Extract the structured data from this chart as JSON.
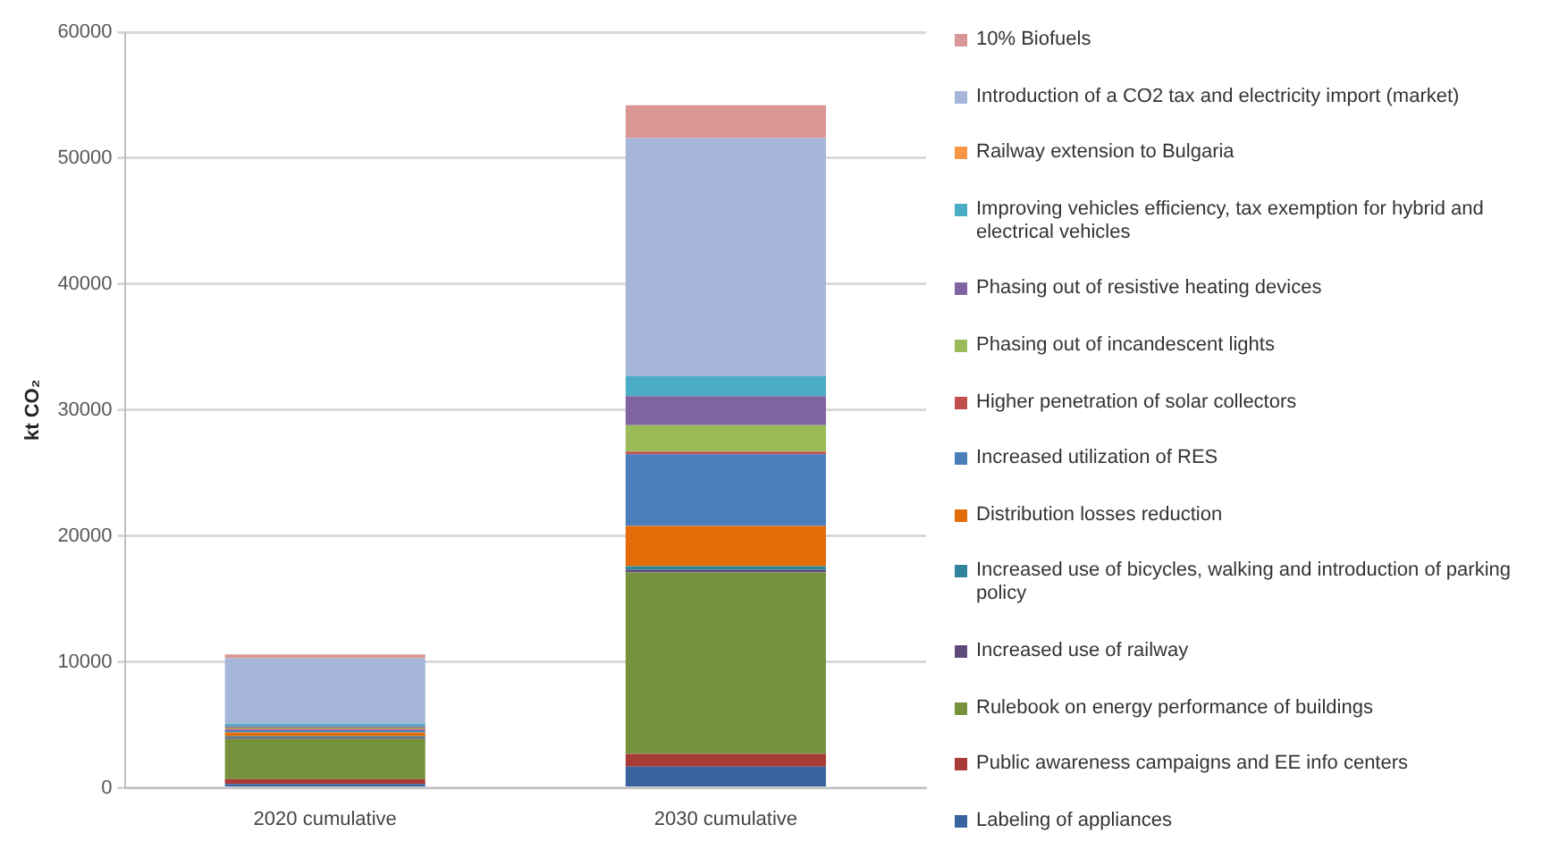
{
  "chart_data": {
    "type": "bar",
    "stacked": true,
    "ylabel": "kt CO₂",
    "categories": [
      "2020 cumulative",
      "2030 cumulative"
    ],
    "ylim": [
      0,
      60000
    ],
    "yticks": [
      0,
      10000,
      20000,
      30000,
      40000,
      50000,
      60000
    ],
    "grid": "y",
    "legend": "right",
    "series": [
      {
        "name": "Labeling of appliances",
        "color": "#3a64a0",
        "values": [
          300,
          1700
        ]
      },
      {
        "name": "Public awareness campaigns and EE info centers",
        "color": "#a83a37",
        "values": [
          400,
          1000
        ]
      },
      {
        "name": "Rulebook on energy performance of buildings",
        "color": "#76923c",
        "values": [
          3200,
          14400
        ]
      },
      {
        "name": "Increased use of railway",
        "color": "#604a7b",
        "values": [
          100,
          200
        ]
      },
      {
        "name": "Increased use of bicycles, walking and introduction of parking policy",
        "color": "#31849b",
        "values": [
          100,
          300
        ]
      },
      {
        "name": "Distribution losses reduction",
        "color": "#e36c09",
        "values": [
          300,
          3200
        ]
      },
      {
        "name": "Increased utilization of RES",
        "color": "#4a7ebb",
        "values": [
          200,
          5700
        ]
      },
      {
        "name": "Higher penetration of solar collectors",
        "color": "#c0504d",
        "values": [
          100,
          200
        ]
      },
      {
        "name": "Phasing out of incandescent lights",
        "color": "#9bbb59",
        "values": [
          100,
          2100
        ]
      },
      {
        "name": "Phasing out of resistive heating devices",
        "color": "#8064a2",
        "values": [
          100,
          2300
        ]
      },
      {
        "name": "Improving vehicles efficiency, tax exemption for hybrid and electrical vehicles",
        "color": "#4bacc6",
        "values": [
          200,
          1600
        ]
      },
      {
        "name": "Railway extension to Bulgaria",
        "color": "#f79646",
        "values": [
          0,
          0
        ]
      },
      {
        "name": "Introduction of a CO2 tax and electricity import (market)",
        "color": "#a5b6d9",
        "values": [
          5200,
          18900
        ]
      },
      {
        "name": "10% Biofuels",
        "color": "#d99694",
        "values": [
          300,
          2600
        ]
      }
    ]
  }
}
